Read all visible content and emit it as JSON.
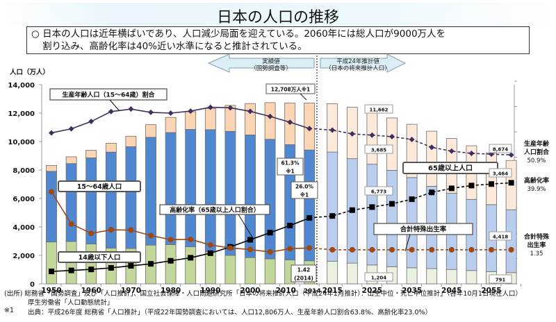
{
  "title": "日本の人口の推移",
  "summary": {
    "line1": "○ 日本の人口は近年横ばいであり、人口減少局面を迎えている。2060年には総人口が9000万人を",
    "line2": "割り込み、高齢化率は40%近い水準になると推計されている。"
  },
  "arrows": {
    "actual": {
      "line1": "実績値",
      "line2": "（国勢調査等）"
    },
    "projected": {
      "line1": "平成24年推計値",
      "line2": "（日本の将来推計人口）"
    }
  },
  "colors": {
    "age0_14_actual": "#c4d79b",
    "age15_64_actual": "#4f88d0",
    "age65_actual": "#fcd5b5",
    "age0_14_proj": "#ebf1de",
    "age15_64_proj": "#b9cdee",
    "age65_proj": "#fde9d9",
    "working_ratio": "#3f2f5f",
    "aging_rate": "#000000",
    "tfr": "#a0480f"
  },
  "chart_data": {
    "type": "bar",
    "stacked": true,
    "title": "日本の人口の推移",
    "ylabel": "人口（万人）",
    "ylim": [
      0,
      14000
    ],
    "yticks": [
      "0",
      "2,000",
      "4,000",
      "6,000",
      "8,000",
      "10,000",
      "12,000",
      "14,000"
    ],
    "right_axis_ylim_percent": [
      0,
      80
    ],
    "tfr_axis_ylim": [
      0,
      8
    ],
    "categories": [
      "1950",
      "1955",
      "1960",
      "1965",
      "1970",
      "1975",
      "1980",
      "1985",
      "1990",
      "1995",
      "2000",
      "2005",
      "2010",
      "2014",
      "2015",
      "2020",
      "2025",
      "2030",
      "2035",
      "2040",
      "2045",
      "2050",
      "2055",
      "2060"
    ],
    "xtick_labels": [
      "1950",
      "1960",
      "1970",
      "1980",
      "1990",
      "2000",
      "2010",
      "2014",
      "2015",
      "2025",
      "2035",
      "2045",
      "2055"
    ],
    "projection_start": "2015",
    "series": [
      {
        "name": "14歳以下人口",
        "values": [
          2943,
          2980,
          2807,
          2517,
          2482,
          2722,
          2751,
          2603,
          2249,
          2001,
          1847,
          1752,
          1680,
          1623,
          1583,
          1457,
          1324,
          1204,
          1129,
          1073,
          1012,
          937,
          861,
          791
        ]
      },
      {
        "name": "15〜64歳人口",
        "values": [
          4966,
          5473,
          6047,
          6744,
          7157,
          7581,
          7883,
          8251,
          8590,
          8716,
          8622,
          8409,
          8103,
          7785,
          7682,
          7341,
          7085,
          6773,
          6343,
          5787,
          5353,
          5001,
          4706,
          4418
        ]
      },
      {
        "name": "65歳以上人口",
        "values": [
          411,
          475,
          535,
          624,
          739,
          887,
          1065,
          1247,
          1489,
          1826,
          2204,
          2576,
          2925,
          3300,
          3395,
          3612,
          3657,
          3685,
          3741,
          3868,
          3856,
          3768,
          3626,
          3464
        ]
      },
      {
        "name": "生産年齢人口（15〜64歳）割合",
        "unit": "%",
        "values": [
          59.6,
          61.2,
          64.1,
          68.0,
          69.0,
          67.7,
          67.4,
          68.2,
          69.7,
          69.5,
          68.1,
          66.1,
          63.8,
          61.3,
          60.7,
          59.2,
          58.7,
          58.1,
          57.0,
          53.9,
          52.4,
          51.5,
          51.2,
          50.9
        ]
      },
      {
        "name": "高齢化率（65歳以上人口割合）",
        "unit": "%",
        "values": [
          4.9,
          5.3,
          5.7,
          6.3,
          7.1,
          7.9,
          9.1,
          10.3,
          12.1,
          14.6,
          17.4,
          20.2,
          23.0,
          26.0,
          26.8,
          29.1,
          30.3,
          31.6,
          33.4,
          36.1,
          37.7,
          38.8,
          39.4,
          39.9
        ]
      },
      {
        "name": "合計特殊出生率",
        "values": [
          3.65,
          2.37,
          2.0,
          2.14,
          2.13,
          1.91,
          1.75,
          1.76,
          1.54,
          1.42,
          1.36,
          1.26,
          1.39,
          1.42,
          1.35,
          1.35,
          1.35,
          1.35,
          1.35,
          1.35,
          1.35,
          1.35,
          1.35,
          1.35
        ]
      }
    ],
    "annotations": {
      "total_2014": "12,708万人※1",
      "working_2014": "61.3%",
      "working_2014_note": "※1",
      "aging_2014": "26.0%",
      "aging_2014_note": "※1",
      "tfr_2014": "1.42",
      "tfr_2014_year": "(2014)",
      "total_2030": "11,662",
      "age65_2030": "3,685",
      "age15_64_2030": "6,773",
      "age0_14_2030": "1,204",
      "total_2060": "8,674",
      "age65_2060": "3,464",
      "age15_64_2060": "4,418",
      "age0_14_2060": "791"
    },
    "labels": {
      "working_ratio": "生産年齢人口（15〜64歳）割合",
      "age15_64": "15〜64歳人口",
      "aging_rate": "高齢化率（65歳以上人口割合）",
      "age0_14": "14歳以下人口",
      "age65": "65歳以上人口",
      "tfr": "合計特殊出生率"
    },
    "right_labels": {
      "working": {
        "line1": "生産年齢",
        "line2": "人口割合",
        "value": "50.9%"
      },
      "aging": {
        "line1": "高齢化率",
        "value": "39.9%"
      },
      "tfr": {
        "line1": "合計特殊",
        "line2": "出生率",
        "value": "1.35"
      }
    }
  },
  "footer": {
    "source_line1": "(出所)  総務省「国勢調査」及び「人口推計」、国立社会保障・人口問題研究所「日本の将来推計人口（平成24年1月推計）：出生中位・死亡中位推計」（各年10月1日現在人口）",
    "source_line2": "厚生労働省「人口動態統計」",
    "note_mark": "※1",
    "note_text": "出典：平成26年度  総務省「人口推計」（平成22年国勢調査においては、人口12,806万人、生産年齢人口割合63.8%、高齢化率23.0%）"
  }
}
